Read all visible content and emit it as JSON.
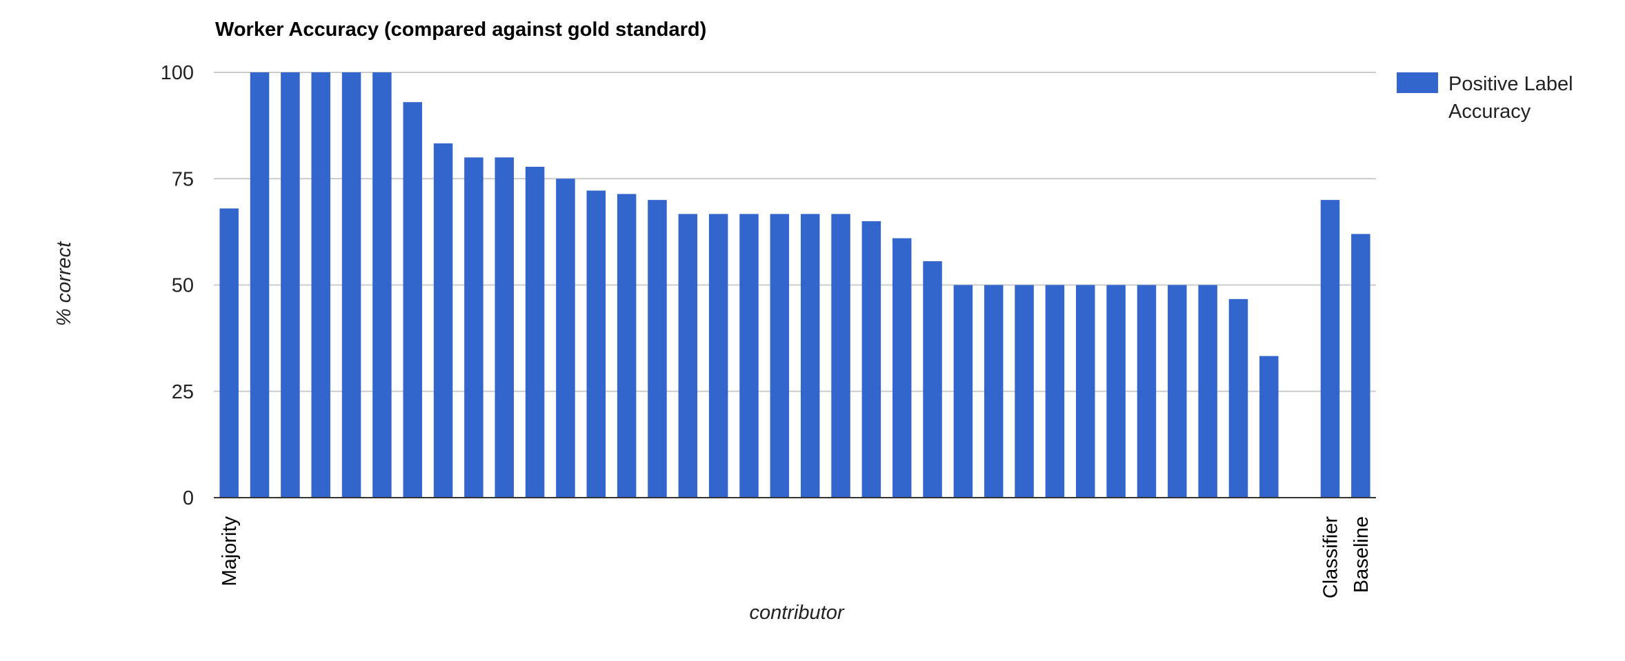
{
  "chart_data": {
    "type": "bar",
    "title": "Worker Accuracy (compared against gold standard)",
    "xlabel": "contributor",
    "ylabel": "% correct",
    "ylim": [
      0,
      100
    ],
    "yticks": [
      0,
      25,
      50,
      75,
      100
    ],
    "grid": true,
    "legend_position": "right",
    "series": [
      {
        "name": "Positive Label Accuracy",
        "color": "#3366cc",
        "values": [
          68,
          100,
          100,
          100,
          100,
          100,
          93,
          83.3,
          80,
          80,
          77.8,
          75,
          72.2,
          71.4,
          70,
          66.7,
          66.7,
          66.7,
          66.7,
          66.7,
          66.7,
          65,
          61,
          55.6,
          50,
          50,
          50,
          50,
          50,
          50,
          50,
          50,
          50,
          46.7,
          33.3,
          0,
          70,
          62
        ]
      }
    ],
    "categories": [
      "Majority",
      "",
      "",
      "",
      "",
      "",
      "",
      "",
      "",
      "",
      "",
      "",
      "",
      "",
      "",
      "",
      "",
      "",
      "",
      "",
      "",
      "",
      "",
      "",
      "",
      "",
      "",
      "",
      "",
      "",
      "",
      "",
      "",
      "",
      "",
      "",
      "Classifier",
      "Baseline"
    ]
  }
}
